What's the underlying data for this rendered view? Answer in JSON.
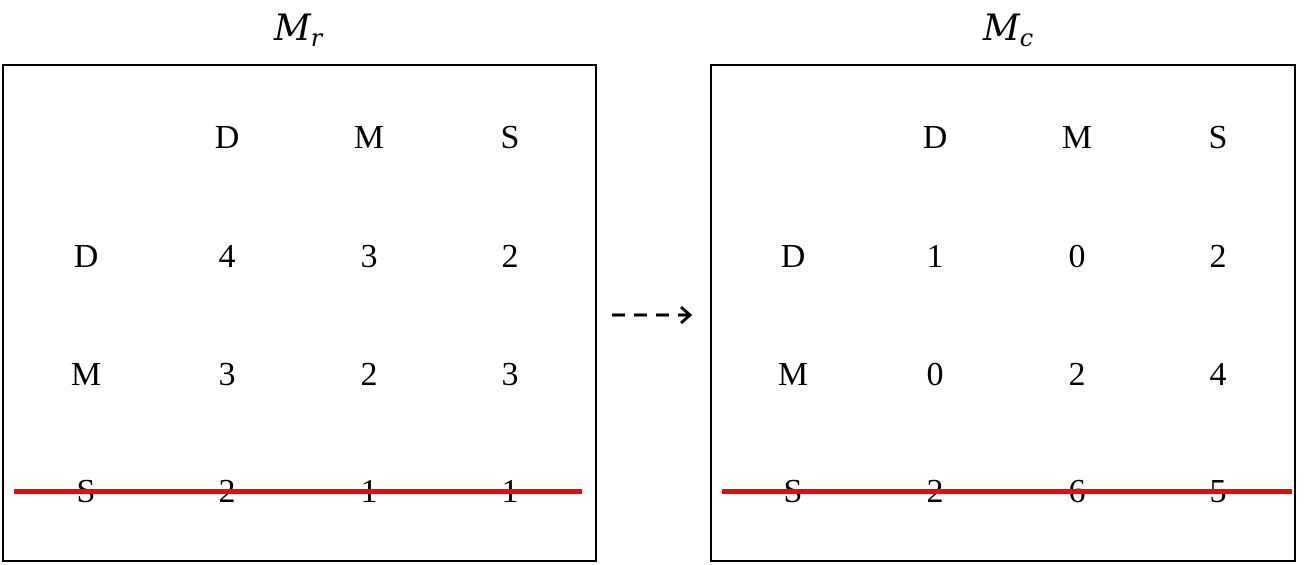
{
  "matrices": [
    {
      "title_base": "M",
      "title_sub": "r",
      "col_headers": [
        "D",
        "M",
        "S"
      ],
      "rows": [
        {
          "label": "D",
          "values": [
            "4",
            "3",
            "2"
          ]
        },
        {
          "label": "M",
          "values": [
            "3",
            "2",
            "3"
          ]
        },
        {
          "label": "S",
          "values": [
            "2",
            "1",
            "1"
          ]
        }
      ],
      "struck_row": "S"
    },
    {
      "title_base": "M",
      "title_sub": "c",
      "col_headers": [
        "D",
        "M",
        "S"
      ],
      "rows": [
        {
          "label": "D",
          "values": [
            "1",
            "0",
            "2"
          ]
        },
        {
          "label": "M",
          "values": [
            "0",
            "2",
            "4"
          ]
        },
        {
          "label": "S",
          "values": [
            "2",
            "6",
            "5"
          ]
        }
      ],
      "struck_row": "S"
    }
  ],
  "arrow": {
    "style": "dashed",
    "direction": "right"
  },
  "colors": {
    "strike": "#ff0000",
    "ink": "#000000"
  }
}
